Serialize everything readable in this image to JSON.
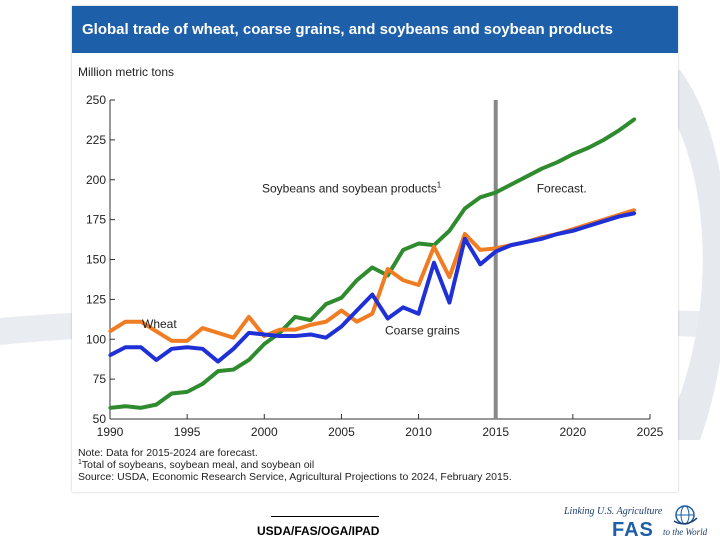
{
  "slide": {
    "footer": "USDA/FAS/OGA/IPAD",
    "logo": {
      "tagline": "Linking U.S. Agriculture",
      "wordmark": "FAS",
      "suffix": "to the World"
    }
  },
  "chart_data": {
    "type": "line",
    "title": "Global trade of wheat, coarse grains, and soybeans and soybean products",
    "ylabel": "Million metric tons",
    "xlabel": "",
    "xlim": [
      1990,
      2025
    ],
    "ylim": [
      50,
      250
    ],
    "xticks": [
      1990,
      1995,
      2000,
      2005,
      2010,
      2015,
      2020,
      2025
    ],
    "yticks": [
      50,
      75,
      100,
      125,
      150,
      175,
      200,
      225,
      250
    ],
    "grid": false,
    "forecast_line_x": 2015,
    "forecast_label": "Forecast.",
    "x": [
      1990,
      1991,
      1992,
      1993,
      1994,
      1995,
      1996,
      1997,
      1998,
      1999,
      2000,
      2001,
      2002,
      2003,
      2004,
      2005,
      2006,
      2007,
      2008,
      2009,
      2010,
      2011,
      2012,
      2013,
      2014,
      2015,
      2016,
      2017,
      2018,
      2019,
      2020,
      2021,
      2022,
      2023,
      2024
    ],
    "series": [
      {
        "name": "Soybeans and soybean products",
        "label": "Soybeans and soybean products",
        "label_superscript": "1",
        "color": "#2e8b2e",
        "values": [
          57,
          58,
          57,
          59,
          66,
          67,
          72,
          80,
          81,
          87,
          97,
          104,
          114,
          112,
          122,
          126,
          137,
          145,
          140,
          156,
          160,
          159,
          168,
          182,
          189,
          192,
          197,
          202,
          207,
          211,
          216,
          220,
          225,
          231,
          238
        ]
      },
      {
        "name": "Wheat",
        "label": "Wheat",
        "color": "#f07d23",
        "values": [
          105,
          111,
          111,
          105,
          99,
          99,
          107,
          104,
          101,
          114,
          102,
          106,
          106,
          109,
          111,
          118,
          111,
          116,
          144,
          137,
          134,
          158,
          139,
          166,
          156,
          157,
          159,
          161,
          164,
          166,
          169,
          172,
          175,
          178,
          181
        ]
      },
      {
        "name": "Coarse grains",
        "label": "Coarse grains",
        "color": "#1f31d6",
        "values": [
          90,
          95,
          95,
          87,
          94,
          95,
          94,
          86,
          94,
          104,
          103,
          102,
          102,
          103,
          101,
          108,
          118,
          128,
          113,
          120,
          116,
          148,
          123,
          163,
          147,
          155,
          159,
          161,
          163,
          166,
          168,
          171,
          174,
          177,
          179
        ]
      }
    ],
    "notes": [
      "Note: Data for 2015-2024 are forecast.",
      "Total of soybeans, soybean meal, and soybean oil",
      "Source: USDA, Economic Research Service, Agricultural Projections to 2024, February 2015."
    ],
    "note_superscript": "1"
  }
}
